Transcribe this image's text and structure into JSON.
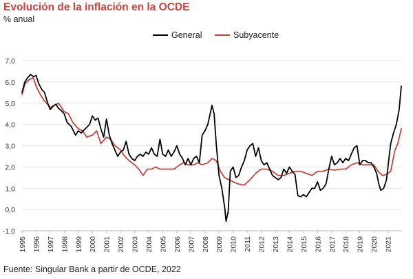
{
  "title": "Evolución de la inflación en la OCDE",
  "subtitle": "% anual",
  "source": "Fuente: Singular Bank  a partir de OCDE, 2022",
  "colors": {
    "general": "#000000",
    "subyacente": "#c9443c",
    "title": "#c9443c",
    "grid": "#e4e4e4"
  },
  "chart_data": {
    "type": "line",
    "title": "Evolución de la inflación en la OCDE",
    "subtitle": "% anual",
    "ylabel": "% anual",
    "xlabel": "",
    "ylim": [
      -1.0,
      7.0
    ],
    "xlim": [
      1995.0,
      2022.0
    ],
    "yticks": [
      "-1,0",
      "0,0",
      "1,0",
      "2,0",
      "3,0",
      "4,0",
      "5,0",
      "6,0",
      "7,0"
    ],
    "xticks": [
      "1995",
      "1996",
      "1997",
      "1998",
      "1999",
      "2000",
      "2001",
      "2002",
      "2003",
      "2004",
      "2005",
      "2006",
      "2007",
      "2008",
      "2009",
      "2010",
      "2011",
      "2012",
      "2013",
      "2014",
      "2015",
      "2016",
      "2017",
      "2018",
      "2019",
      "2020",
      "2021"
    ],
    "grid": "horizontal",
    "legend_position": "top-center",
    "series": [
      {
        "name": "General",
        "x": [
          1995.0,
          1995.2,
          1995.4,
          1995.6,
          1995.8,
          1996.0,
          1996.2,
          1996.4,
          1996.6,
          1996.8,
          1997.0,
          1997.2,
          1997.4,
          1997.6,
          1997.8,
          1998.0,
          1998.2,
          1998.5,
          1998.8,
          1999.0,
          1999.2,
          1999.5,
          1999.8,
          2000.0,
          2000.2,
          2000.4,
          2000.6,
          2000.8,
          2001.0,
          2001.2,
          2001.4,
          2001.6,
          2001.8,
          2002.0,
          2002.2,
          2002.4,
          2002.6,
          2002.8,
          2003.0,
          2003.2,
          2003.4,
          2003.6,
          2003.8,
          2004.0,
          2004.2,
          2004.4,
          2004.6,
          2004.8,
          2005.0,
          2005.2,
          2005.4,
          2005.6,
          2005.8,
          2006.0,
          2006.2,
          2006.4,
          2006.6,
          2006.8,
          2007.0,
          2007.2,
          2007.4,
          2007.6,
          2007.8,
          2008.0,
          2008.2,
          2008.4,
          2008.5,
          2008.65,
          2008.8,
          2009.0,
          2009.2,
          2009.4,
          2009.5,
          2009.65,
          2009.8,
          2010.0,
          2010.2,
          2010.4,
          2010.6,
          2010.8,
          2011.0,
          2011.2,
          2011.4,
          2011.6,
          2011.8,
          2012.0,
          2012.2,
          2012.4,
          2012.6,
          2012.8,
          2013.0,
          2013.2,
          2013.4,
          2013.6,
          2013.8,
          2014.0,
          2014.2,
          2014.4,
          2014.6,
          2014.8,
          2015.0,
          2015.2,
          2015.4,
          2015.6,
          2015.8,
          2016.0,
          2016.2,
          2016.4,
          2016.6,
          2016.8,
          2017.0,
          2017.2,
          2017.4,
          2017.6,
          2017.8,
          2018.0,
          2018.2,
          2018.4,
          2018.6,
          2018.8,
          2019.0,
          2019.2,
          2019.4,
          2019.6,
          2019.8,
          2020.0,
          2020.2,
          2020.35,
          2020.5,
          2020.7,
          2020.9,
          2021.0,
          2021.2,
          2021.4,
          2021.6,
          2021.8,
          2021.95
        ],
        "values": [
          5.5,
          6.0,
          6.2,
          6.35,
          6.25,
          6.3,
          5.9,
          5.65,
          5.5,
          5.05,
          4.7,
          4.85,
          4.95,
          4.75,
          4.65,
          4.5,
          4.1,
          3.9,
          3.5,
          3.7,
          3.6,
          3.8,
          4.0,
          4.4,
          4.2,
          4.3,
          3.8,
          3.4,
          4.25,
          3.5,
          3.1,
          2.8,
          2.5,
          2.7,
          2.8,
          3.2,
          2.6,
          2.4,
          2.3,
          2.5,
          2.6,
          2.5,
          2.7,
          2.6,
          2.9,
          2.6,
          2.5,
          3.3,
          2.6,
          2.5,
          2.8,
          2.5,
          2.7,
          3.0,
          2.6,
          2.4,
          2.1,
          2.4,
          2.1,
          2.4,
          2.5,
          2.2,
          3.5,
          3.7,
          4.0,
          4.6,
          4.9,
          4.5,
          3.1,
          1.6,
          1.0,
          0.1,
          -0.55,
          -0.1,
          1.8,
          2.0,
          1.5,
          1.6,
          2.0,
          2.3,
          2.8,
          3.0,
          3.1,
          2.5,
          2.9,
          2.3,
          2.1,
          2.2,
          1.9,
          1.6,
          1.5,
          1.4,
          1.5,
          1.9,
          1.7,
          2.0,
          1.8,
          1.65,
          0.65,
          0.6,
          0.7,
          0.6,
          0.8,
          1.0,
          1.0,
          1.3,
          0.9,
          1.0,
          1.2,
          1.9,
          2.5,
          2.1,
          2.2,
          2.4,
          2.2,
          2.4,
          2.3,
          2.6,
          2.9,
          3.0,
          2.1,
          2.3,
          2.3,
          2.2,
          2.2,
          2.0,
          1.7,
          1.2,
          0.9,
          1.0,
          1.4,
          2.0,
          3.1,
          3.6,
          4.0,
          4.7,
          5.8
        ]
      },
      {
        "name": "Subyacente",
        "x": [
          1995.0,
          1995.2,
          1995.5,
          1995.8,
          1996.0,
          1996.3,
          1996.6,
          1997.0,
          1997.3,
          1997.6,
          1998.0,
          1998.3,
          1998.6,
          1999.0,
          1999.3,
          1999.6,
          2000.0,
          2000.3,
          2000.6,
          2001.0,
          2001.3,
          2001.6,
          2002.0,
          2002.3,
          2002.6,
          2003.0,
          2003.3,
          2003.6,
          2003.9,
          2004.2,
          2004.5,
          2004.8,
          2005.1,
          2005.5,
          2005.8,
          2006.2,
          2006.5,
          2006.8,
          2007.2,
          2007.5,
          2007.8,
          2008.2,
          2008.5,
          2008.8,
          2009.1,
          2009.4,
          2009.7,
          2010.0,
          2010.4,
          2010.8,
          2011.2,
          2011.6,
          2012.0,
          2012.4,
          2012.8,
          2013.2,
          2013.6,
          2014.0,
          2014.4,
          2014.8,
          2015.2,
          2015.6,
          2016.0,
          2016.4,
          2016.8,
          2017.2,
          2017.6,
          2018.0,
          2018.4,
          2018.8,
          2019.2,
          2019.6,
          2020.0,
          2020.3,
          2020.6,
          2020.9,
          2021.2,
          2021.5,
          2021.7,
          2021.95
        ],
        "values": [
          5.4,
          5.9,
          6.1,
          6.2,
          5.8,
          5.4,
          5.1,
          4.8,
          4.9,
          5.0,
          4.6,
          4.5,
          4.1,
          3.8,
          3.7,
          3.4,
          3.5,
          3.7,
          3.1,
          3.4,
          3.3,
          3.0,
          2.8,
          2.5,
          2.3,
          2.1,
          1.9,
          1.6,
          1.9,
          1.9,
          2.0,
          1.9,
          1.9,
          1.9,
          1.9,
          2.1,
          2.2,
          2.1,
          2.1,
          2.2,
          2.1,
          2.2,
          2.4,
          2.3,
          1.8,
          1.5,
          1.4,
          1.3,
          1.2,
          1.15,
          1.4,
          1.7,
          1.9,
          1.9,
          1.8,
          1.6,
          1.6,
          1.7,
          1.8,
          1.8,
          1.7,
          1.6,
          1.8,
          1.8,
          1.9,
          1.85,
          1.9,
          1.9,
          2.1,
          2.2,
          2.1,
          2.1,
          2.1,
          1.8,
          1.6,
          1.65,
          1.8,
          2.8,
          3.1,
          3.8
        ]
      }
    ]
  }
}
